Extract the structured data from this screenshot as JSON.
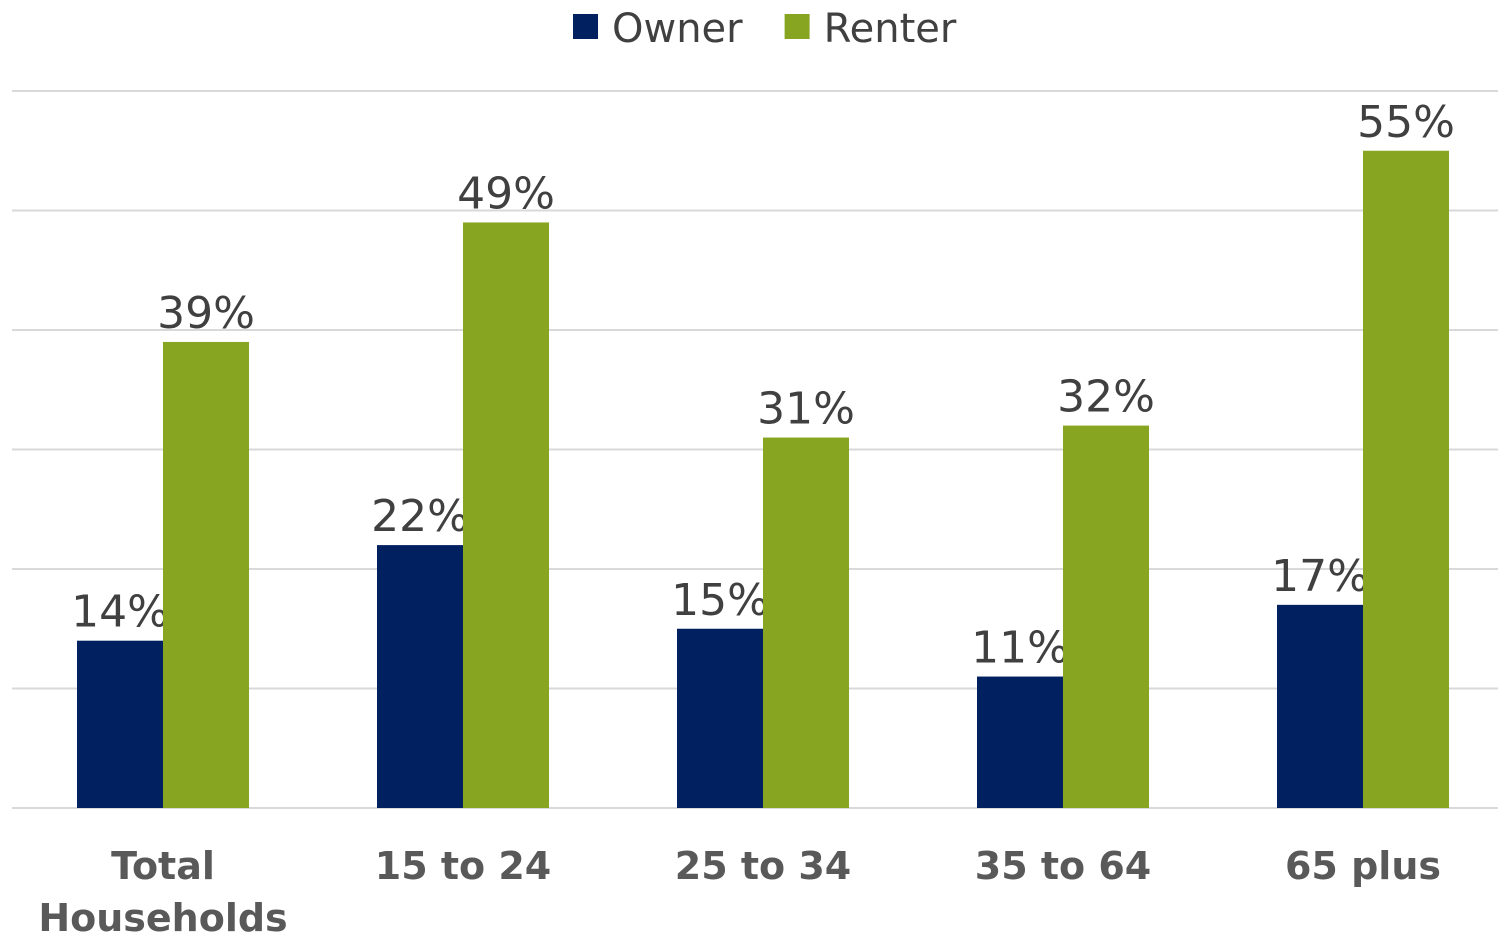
{
  "chart_data": {
    "type": "bar",
    "categories": [
      "Total Households",
      "15 to 24",
      "25 to 34",
      "35 to 64",
      "65 plus"
    ],
    "series": [
      {
        "name": "Owner",
        "color": "#002060",
        "values": [
          14,
          22,
          15,
          11,
          17
        ],
        "value_labels": [
          "14%",
          "22%",
          "15%",
          "11%",
          "17%"
        ]
      },
      {
        "name": "Renter",
        "color": "#87a520",
        "values": [
          39,
          49,
          31,
          32,
          55
        ],
        "value_labels": [
          "39%",
          "49%",
          "31%",
          "32%",
          "55%"
        ]
      }
    ],
    "ylim": [
      0,
      60
    ],
    "yticks": [
      0,
      10,
      20,
      30,
      40,
      50,
      60
    ],
    "grid": true,
    "legend": "top"
  }
}
